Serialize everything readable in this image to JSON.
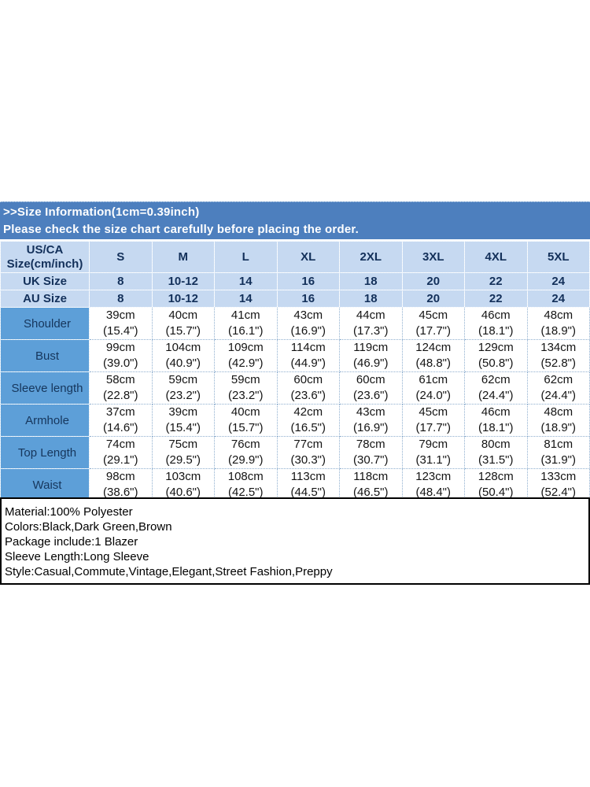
{
  "colors": {
    "title_bar_bg": "#4d7fbe",
    "title_text": "#ffffff",
    "header_row_bg": "#c6d9f1",
    "label_column_bg": "#5d9fd8",
    "header_text": "#13305a",
    "value_text": "#141414",
    "info_box_border": "#000000"
  },
  "title_bar": {
    "line1": ">>Size Information(1cm=0.39inch)",
    "line2": "Please check the size chart carefully before placing the order."
  },
  "size_table": {
    "corner_header_line1": "US/CA",
    "corner_header_line2": "Size(cm/inch)",
    "size_columns": [
      "S",
      "M",
      "L",
      "XL",
      "2XL",
      "3XL",
      "4XL",
      "5XL"
    ],
    "region_rows": [
      {
        "label": "UK Size",
        "values": [
          "8",
          "10-12",
          "14",
          "16",
          "18",
          "20",
          "22",
          "24"
        ]
      },
      {
        "label": "AU Size",
        "values": [
          "8",
          "10-12",
          "14",
          "16",
          "18",
          "20",
          "22",
          "24"
        ]
      }
    ],
    "measurement_rows": [
      {
        "label": "Shoulder",
        "values": [
          {
            "cm": "39cm",
            "inch": "(15.4\")"
          },
          {
            "cm": "40cm",
            "inch": "(15.7\")"
          },
          {
            "cm": "41cm",
            "inch": "(16.1\")"
          },
          {
            "cm": "43cm",
            "inch": "(16.9\")"
          },
          {
            "cm": "44cm",
            "inch": "(17.3\")"
          },
          {
            "cm": "45cm",
            "inch": "(17.7\")"
          },
          {
            "cm": "46cm",
            "inch": "(18.1\")"
          },
          {
            "cm": "48cm",
            "inch": "(18.9\")"
          }
        ]
      },
      {
        "label": "Bust",
        "values": [
          {
            "cm": "99cm",
            "inch": "(39.0\")"
          },
          {
            "cm": "104cm",
            "inch": "(40.9\")"
          },
          {
            "cm": "109cm",
            "inch": "(42.9\")"
          },
          {
            "cm": "114cm",
            "inch": "(44.9\")"
          },
          {
            "cm": "119cm",
            "inch": "(46.9\")"
          },
          {
            "cm": "124cm",
            "inch": "(48.8\")"
          },
          {
            "cm": "129cm",
            "inch": "(50.8\")"
          },
          {
            "cm": "134cm",
            "inch": "(52.8\")"
          }
        ]
      },
      {
        "label": "Sleeve length",
        "values": [
          {
            "cm": "58cm",
            "inch": "(22.8\")"
          },
          {
            "cm": "59cm",
            "inch": "(23.2\")"
          },
          {
            "cm": "59cm",
            "inch": "(23.2\")"
          },
          {
            "cm": "60cm",
            "inch": "(23.6\")"
          },
          {
            "cm": "60cm",
            "inch": "(23.6\")"
          },
          {
            "cm": "61cm",
            "inch": "(24.0\")"
          },
          {
            "cm": "62cm",
            "inch": "(24.4\")"
          },
          {
            "cm": "62cm",
            "inch": "(24.4\")"
          }
        ]
      },
      {
        "label": "Armhole",
        "values": [
          {
            "cm": "37cm",
            "inch": "(14.6\")"
          },
          {
            "cm": "39cm",
            "inch": "(15.4\")"
          },
          {
            "cm": "40cm",
            "inch": "(15.7\")"
          },
          {
            "cm": "42cm",
            "inch": "(16.5\")"
          },
          {
            "cm": "43cm",
            "inch": "(16.9\")"
          },
          {
            "cm": "45cm",
            "inch": "(17.7\")"
          },
          {
            "cm": "46cm",
            "inch": "(18.1\")"
          },
          {
            "cm": "48cm",
            "inch": "(18.9\")"
          }
        ]
      },
      {
        "label": "Top Length",
        "values": [
          {
            "cm": "74cm",
            "inch": "(29.1\")"
          },
          {
            "cm": "75cm",
            "inch": "(29.5\")"
          },
          {
            "cm": "76cm",
            "inch": "(29.9\")"
          },
          {
            "cm": "77cm",
            "inch": "(30.3\")"
          },
          {
            "cm": "78cm",
            "inch": "(30.7\")"
          },
          {
            "cm": "79cm",
            "inch": "(31.1\")"
          },
          {
            "cm": "80cm",
            "inch": "(31.5\")"
          },
          {
            "cm": "81cm",
            "inch": "(31.9\")"
          }
        ]
      },
      {
        "label": "Waist",
        "values": [
          {
            "cm": "98cm",
            "inch": "(38.6\")"
          },
          {
            "cm": "103cm",
            "inch": "(40.6\")"
          },
          {
            "cm": "108cm",
            "inch": "(42.5\")"
          },
          {
            "cm": "113cm",
            "inch": "(44.5\")"
          },
          {
            "cm": "118cm",
            "inch": "(46.5\")"
          },
          {
            "cm": "123cm",
            "inch": "(48.4\")"
          },
          {
            "cm": "128cm",
            "inch": "(50.4\")"
          },
          {
            "cm": "133cm",
            "inch": "(52.4\")"
          }
        ]
      }
    ]
  },
  "product_info": {
    "lines": [
      "Material:100% Polyester",
      "Colors:Black,Dark Green,Brown",
      "Package include:1 Blazer",
      "Sleeve Length:Long Sleeve",
      "Style:Casual,Commute,Vintage,Elegant,Street Fashion,Preppy"
    ]
  }
}
